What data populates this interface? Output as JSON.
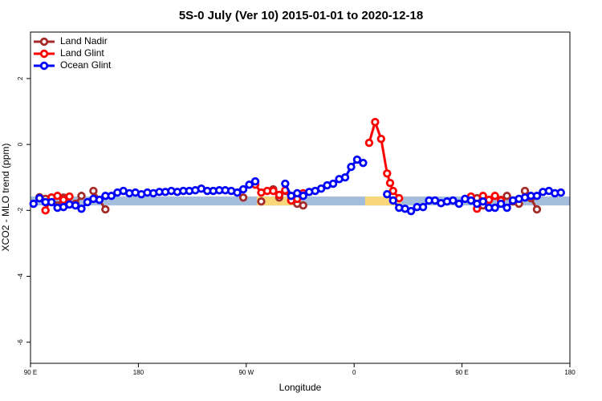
{
  "chart_data": {
    "type": "line",
    "title": "5S-0 July (Ver 10)   2015-01-01 to 2020-12-18",
    "x_label": "Longitude",
    "y_label": "XCO2 - MLO trend (ppm)",
    "xlim": [
      90,
      540
    ],
    "ylim": [
      -6.64,
      3.41
    ],
    "xticks": [
      {
        "value": 90,
        "label": "90 E"
      },
      180,
      {
        "value": 270,
        "label": "90 W"
      },
      {
        "value": 360,
        "label": "0"
      },
      {
        "value": 450,
        "label": "90 E"
      },
      {
        "value": 540,
        "label": "180"
      }
    ],
    "yticks": [
      2,
      0,
      -2,
      -4,
      -6
    ],
    "legend": "top-left",
    "bands": [
      {
        "color": "#a4bddc",
        "x": [
          90,
          540
        ],
        "y": [
          -1.58,
          -1.85
        ]
      },
      {
        "color": "#f7d77a",
        "x": [
          278.8,
          315.7
        ],
        "y": [
          -1.58,
          -1.85
        ]
      },
      {
        "color": "#f7d77a",
        "x": [
          369.2,
          399.4
        ],
        "y": [
          -1.58,
          -1.85
        ]
      }
    ],
    "series": [
      {
        "name": "Land Nadir",
        "color": "#a52a2a",
        "x": [
          97.5,
          102.5,
          107.5,
          112.5,
          117.5,
          122.5,
          127.5,
          132.5,
          137.5,
          142.5,
          147.5,
          152.5,
          262.5,
          267.5,
          272.5,
          277.5,
          282.5,
          287.5,
          292.5,
          297.5,
          302.5,
          307.5,
          312.5,
          317.5,
          452.5,
          457.5,
          462.5,
          467.5,
          472.5,
          477.5,
          482.5,
          487.5,
          492.5,
          497.5,
          502.5,
          507.5,
          512.5
        ],
        "values": [
          -1.6,
          -1.65,
          -1.61,
          -1.85,
          -1.61,
          null,
          -1.8,
          -1.56,
          null,
          -1.41,
          -1.68,
          -1.97,
          null,
          -1.61,
          null,
          null,
          -1.73,
          null,
          -1.36,
          -1.61,
          -1.41,
          -1.68,
          -1.8,
          -1.85,
          null,
          -1.65,
          -1.63,
          -1.85,
          -1.68,
          null,
          -1.68,
          -1.56,
          -1.73,
          -1.8,
          -1.41,
          -1.63,
          -1.97
        ]
      },
      {
        "name": "Land Glint",
        "color": "#ff0000",
        "x": [
          102.5,
          107.5,
          112.5,
          117.5,
          122.5,
          127.5,
          277.5,
          282.5,
          287.5,
          292.5,
          297.5,
          302.5,
          307.5,
          312.5,
          317.5,
          322.5,
          372.5,
          377.5,
          382.5,
          387.5,
          390,
          392.5,
          397.5,
          402.5,
          457.5,
          462.5,
          467.5,
          472.5,
          477.5,
          482.5
        ],
        "values": [
          -2.0,
          -1.61,
          -1.56,
          -1.68,
          -1.58,
          null,
          -1.22,
          -1.46,
          -1.41,
          -1.41,
          -1.53,
          -1.39,
          -1.7,
          -1.65,
          -1.48,
          null,
          0.05,
          0.68,
          0.17,
          -0.88,
          -1.17,
          -1.41,
          -1.63,
          null,
          -1.58,
          -1.95,
          -1.56,
          -1.68,
          -1.56,
          -1.7
        ]
      },
      {
        "name": "Ocean Glint",
        "color": "#0000ff",
        "x": [
          92.5,
          97.5,
          102.5,
          107.5,
          112.5,
          117.5,
          122.5,
          127.5,
          132.5,
          137.5,
          142.5,
          147.5,
          152.5,
          157.5,
          162.5,
          167.5,
          172.5,
          177.5,
          182.5,
          187.5,
          192.5,
          197.5,
          202.5,
          207.5,
          212.5,
          217.5,
          222.5,
          227.5,
          232.5,
          237.5,
          242.5,
          247.5,
          252.5,
          257.5,
          262.5,
          267.5,
          272.5,
          277.5,
          292.5,
          302.5,
          307.5,
          312.5,
          317.5,
          322.5,
          327.5,
          332.5,
          337.5,
          342.5,
          347.5,
          352.5,
          357.5,
          362.5,
          367.5,
          377.5,
          387.5,
          392.5,
          397.5,
          402.5,
          407.5,
          412.5,
          417.5,
          422.5,
          427.5,
          432.5,
          437.5,
          442.5,
          447.5,
          452.5,
          457.5,
          462.5,
          467.5,
          472.5,
          477.5,
          482.5,
          487.5,
          492.5,
          497.5,
          502.5,
          507.5,
          512.5,
          517.5,
          522.5,
          527.5,
          532.5
        ],
        "values": [
          -1.8,
          -1.63,
          -1.75,
          -1.75,
          -1.92,
          -1.9,
          -1.82,
          -1.85,
          -1.95,
          -1.75,
          -1.65,
          -1.68,
          -1.56,
          -1.56,
          -1.46,
          -1.41,
          -1.48,
          -1.46,
          -1.51,
          -1.46,
          -1.48,
          -1.44,
          -1.44,
          -1.41,
          -1.44,
          -1.41,
          -1.41,
          -1.39,
          -1.34,
          -1.41,
          -1.41,
          -1.39,
          -1.39,
          -1.41,
          -1.46,
          -1.36,
          -1.22,
          -1.12,
          null,
          -1.19,
          -1.56,
          -1.48,
          -1.56,
          -1.44,
          -1.41,
          -1.34,
          -1.24,
          -1.19,
          -1.05,
          -1.0,
          -0.68,
          -0.46,
          -0.56,
          null,
          -1.51,
          -1.7,
          -1.92,
          -1.95,
          -2.02,
          -1.9,
          -1.9,
          -1.7,
          -1.7,
          -1.78,
          -1.73,
          -1.7,
          -1.8,
          -1.65,
          -1.7,
          -1.8,
          -1.73,
          -1.92,
          -1.92,
          -1.8,
          -1.92,
          -1.7,
          -1.65,
          -1.61,
          -1.56,
          -1.56,
          -1.44,
          -1.41,
          -1.48,
          -1.46
        ]
      }
    ]
  }
}
